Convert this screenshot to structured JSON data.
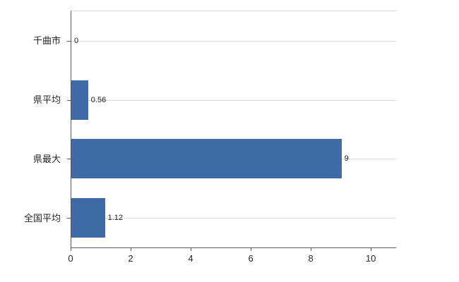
{
  "chart_data": {
    "type": "bar",
    "orientation": "horizontal",
    "title": "",
    "xlabel": "",
    "ylabel": "",
    "categories": [
      "千曲市",
      "県平均",
      "県最大",
      "全国平均"
    ],
    "values": [
      0,
      0.56,
      9,
      1.12
    ],
    "value_labels": [
      "0",
      "0.56",
      "9",
      "1.12"
    ],
    "xlim": [
      0,
      10.82
    ],
    "xticks": [
      0,
      2,
      4,
      6,
      8,
      10
    ],
    "bar_color": "#3e6ba6",
    "grid": "horizontal category gridlines, light gray",
    "legend": "none",
    "background": "#ffffff"
  }
}
